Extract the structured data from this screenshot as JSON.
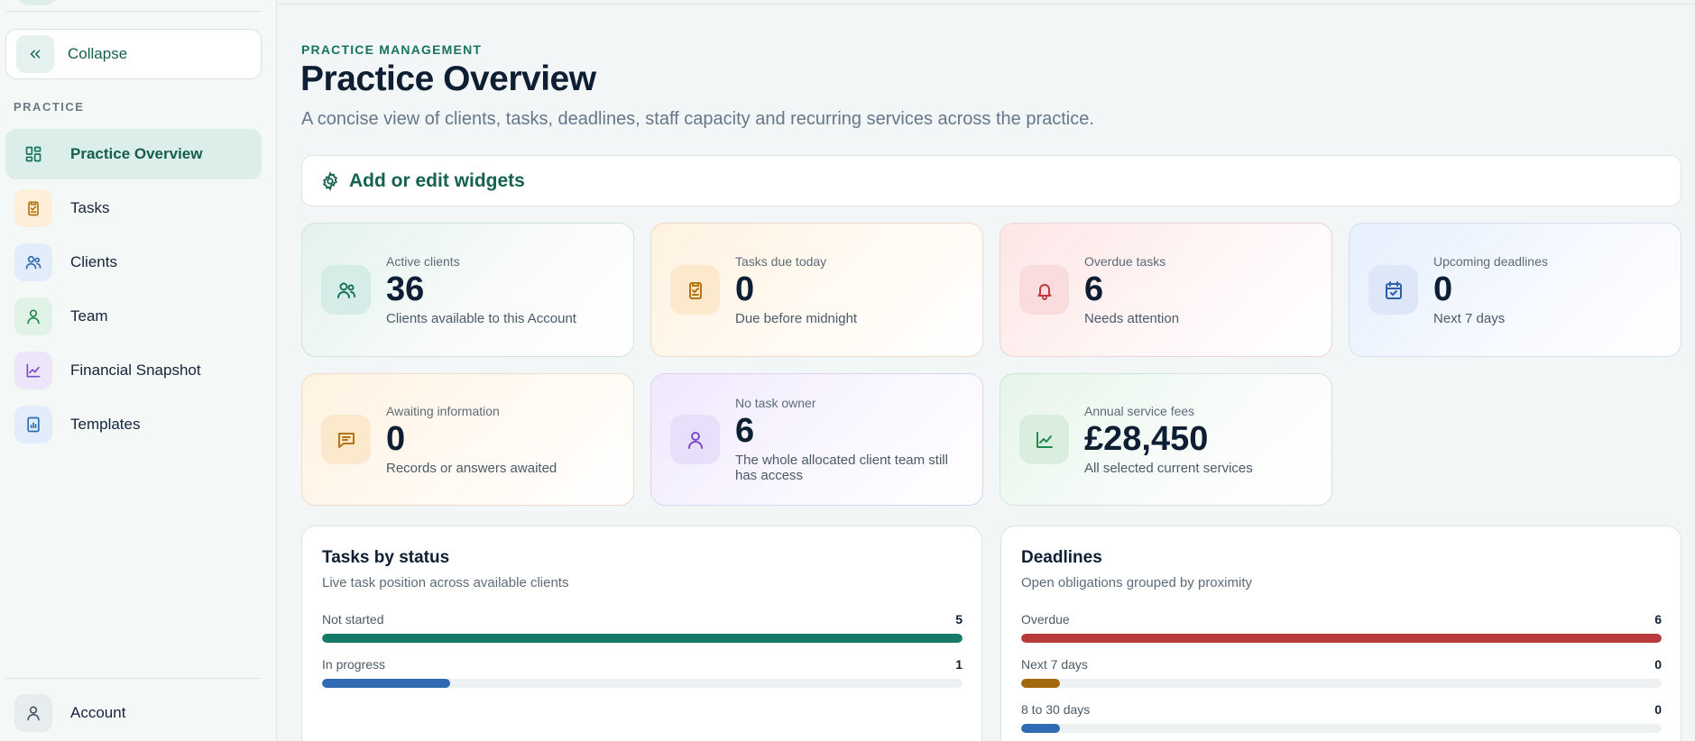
{
  "sidebar": {
    "collapse_label": "Collapse",
    "section_label": "PRACTICE",
    "items": [
      {
        "label": "Practice Overview",
        "icon": "grid-icon",
        "color": "#16735f",
        "bg": "#dceee9"
      },
      {
        "label": "Tasks",
        "icon": "clipboard-check-icon",
        "color": "#b5740f",
        "bg": "#fdefd9"
      },
      {
        "label": "Clients",
        "icon": "users-icon",
        "color": "#2f6ab3",
        "bg": "#e3ecfa"
      },
      {
        "label": "Team",
        "icon": "user-icon",
        "color": "#238a4d",
        "bg": "#e1f2e6"
      },
      {
        "label": "Financial Snapshot",
        "icon": "chart-line-icon",
        "color": "#7a4cc7",
        "bg": "#ede6fb"
      },
      {
        "label": "Templates",
        "icon": "document-chart-icon",
        "color": "#2f6ab3",
        "bg": "#e3ecfa"
      }
    ],
    "account_label": "Account"
  },
  "header": {
    "eyebrow": "PRACTICE MANAGEMENT",
    "title": "Practice Overview",
    "subtitle": "A concise view of clients, tasks, deadlines, staff capacity and recurring services across the practice."
  },
  "widgets_button": "Add or edit widgets",
  "cards": [
    {
      "label": "Active clients",
      "value": "36",
      "sub": "Clients available to this Account",
      "icon": "users-icon"
    },
    {
      "label": "Tasks due today",
      "value": "0",
      "sub": "Due before midnight",
      "icon": "clipboard-check-icon"
    },
    {
      "label": "Overdue tasks",
      "value": "6",
      "sub": "Needs attention",
      "icon": "bell-icon"
    },
    {
      "label": "Upcoming deadlines",
      "value": "0",
      "sub": "Next 7 days",
      "icon": "calendar-check-icon"
    },
    {
      "label": "Awaiting information",
      "value": "0",
      "sub": "Records or answers awaited",
      "icon": "message-icon"
    },
    {
      "label": "No task owner",
      "value": "6",
      "sub": "The whole allocated client team still has access",
      "icon": "user-icon"
    },
    {
      "label": "Annual service fees",
      "value": "£28,450",
      "sub": "All selected current services",
      "icon": "chart-line-icon"
    }
  ],
  "tasks_panel": {
    "title": "Tasks by status",
    "subtitle": "Live task position across available clients",
    "rows": [
      {
        "label": "Not started",
        "count": "5",
        "fill": 1.0,
        "color": "#157a68"
      },
      {
        "label": "In progress",
        "count": "1",
        "fill": 0.2,
        "color": "#2f6ab3"
      }
    ]
  },
  "deadlines_panel": {
    "title": "Deadlines",
    "subtitle": "Open obligations grouped by proximity",
    "rows": [
      {
        "label": "Overdue",
        "count": "6",
        "fill": 1.0,
        "color": "#b83a3a"
      },
      {
        "label": "Next 7 days",
        "count": "0",
        "fill": 0.06,
        "color": "#a4680f"
      },
      {
        "label": "8 to 30 days",
        "count": "0",
        "fill": 0.06,
        "color": "#2f6ab3"
      }
    ]
  }
}
